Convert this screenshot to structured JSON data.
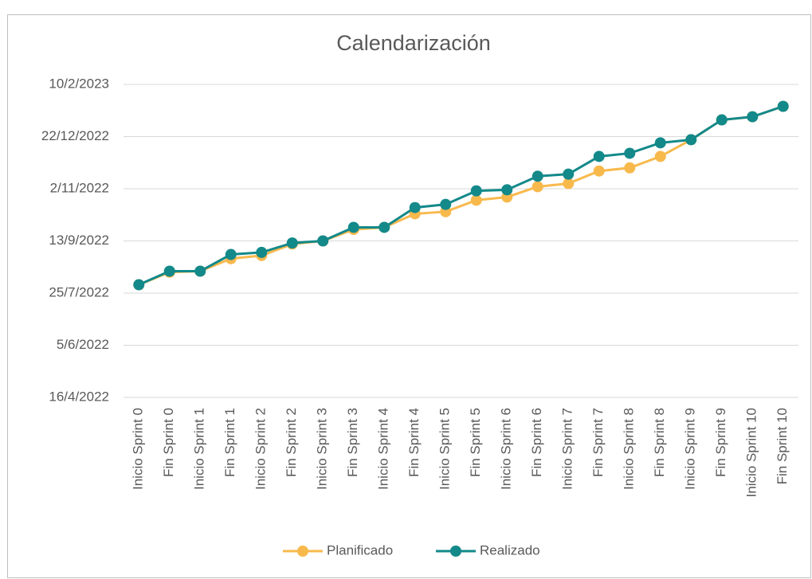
{
  "chart_data": {
    "type": "line",
    "title": "Calendarización",
    "categories": [
      "Inicio Sprint 0",
      "Fin Sprint 0",
      "Inicio Sprint 1",
      "Fin Sprint 1",
      "Inicio Sprint 2",
      "Fin Sprint 2",
      "Inicio Sprint 3",
      "Fin Sprint 3",
      "Inicio Sprint 4",
      "Fin Sprint 4",
      "Inicio Sprint 5",
      "Fin Sprint 5",
      "Inicio Sprint 6",
      "Fin Sprint 6",
      "Inicio Sprint 7",
      "Fin Sprint 7",
      "Inicio Sprint 8",
      "Fin Sprint 8",
      "Inicio Sprint 9",
      "Fin Sprint 9",
      "Inicio Sprint 10",
      "Fin Sprint 10"
    ],
    "series": [
      {
        "name": "Planificado",
        "color": "#f8b94c",
        "values": [
          44775,
          44787,
          44788,
          44800,
          44803,
          44814,
          44817,
          44828,
          44830,
          44843,
          44845,
          44856,
          44859,
          44869,
          44872,
          44884,
          44887,
          44898,
          44914,
          44933,
          44936,
          44946
        ]
      },
      {
        "name": "Realizado",
        "color": "#13898a",
        "values": [
          44775,
          44788,
          44788,
          44804,
          44806,
          44815,
          44817,
          44830,
          44830,
          44849,
          44852,
          44865,
          44866,
          44879,
          44881,
          44898,
          44901,
          44911,
          44914,
          44933,
          44936,
          44946
        ]
      }
    ],
    "ylim": [
      44667,
      44967
    ],
    "yticks": [
      {
        "value": 44667,
        "label": "16/4/2022"
      },
      {
        "value": 44717,
        "label": "5/6/2022"
      },
      {
        "value": 44767,
        "label": "25/7/2022"
      },
      {
        "value": 44817,
        "label": "13/9/2022"
      },
      {
        "value": 44867,
        "label": "2/11/2022"
      },
      {
        "value": 44917,
        "label": "22/12/2022"
      },
      {
        "value": 44967,
        "label": "10/2/2023"
      }
    ],
    "grid": true,
    "legend": "bottom"
  }
}
